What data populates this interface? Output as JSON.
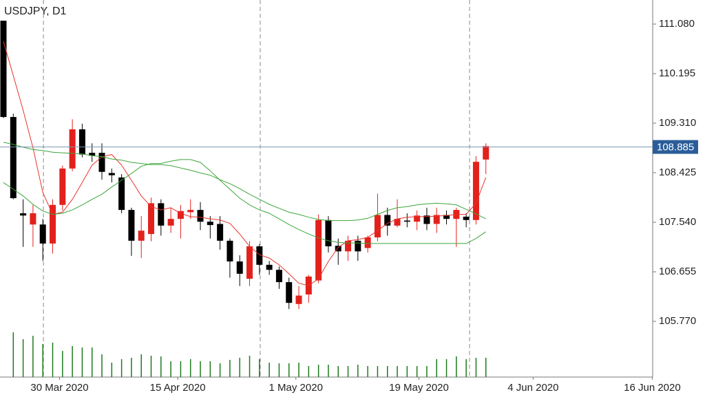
{
  "chart_data": {
    "type": "candlestick",
    "title": "USDJPY, D1",
    "open": [
      111.14,
      109.42,
      107.7,
      107.5,
      107.5,
      107.16,
      107.85,
      108.5,
      109.2,
      108.78,
      108.78,
      108.42,
      108.34,
      107.76,
      107.21,
      107.33,
      107.88,
      107.48,
      107.6,
      107.72,
      107.76,
      107.55,
      107.51,
      107.21,
      106.84,
      106.53,
      107.11,
      106.78,
      106.69,
      106.47,
      106.08,
      106.25,
      106.5,
      107.58,
      107.12,
      107.02,
      107.21,
      107.08,
      107.27,
      107.67,
      107.48,
      107.57,
      107.55,
      107.66,
      107.51,
      107.67,
      107.6,
      107.64,
      107.58,
      108.66
    ],
    "high": [
      111.14,
      109.48,
      107.95,
      107.85,
      107.6,
      107.95,
      108.55,
      109.38,
      109.3,
      108.95,
      108.95,
      108.5,
      108.4,
      107.8,
      107.65,
      107.98,
      107.95,
      107.8,
      107.85,
      107.95,
      107.9,
      107.65,
      107.65,
      107.25,
      106.95,
      107.2,
      107.15,
      106.85,
      106.75,
      106.55,
      106.4,
      106.6,
      107.68,
      107.65,
      107.25,
      107.3,
      107.3,
      107.3,
      108.05,
      107.8,
      107.95,
      107.7,
      107.75,
      107.8,
      107.8,
      107.75,
      107.8,
      107.7,
      108.72,
      108.95
    ],
    "low": [
      109.4,
      107.95,
      107.1,
      107.1,
      106.85,
      106.98,
      107.75,
      108.45,
      108.7,
      108.62,
      108.3,
      108.25,
      107.7,
      106.94,
      106.9,
      107.2,
      107.3,
      107.35,
      107.25,
      107.6,
      107.4,
      107.25,
      107.05,
      106.55,
      106.4,
      106.4,
      106.6,
      106.6,
      106.35,
      105.99,
      105.99,
      106.1,
      106.45,
      107.0,
      106.78,
      106.85,
      106.85,
      107.0,
      107.2,
      107.3,
      107.45,
      107.45,
      107.4,
      107.4,
      107.35,
      107.5,
      107.1,
      107.45,
      107.5,
      108.4
    ],
    "close": [
      109.42,
      107.97,
      107.66,
      107.7,
      107.16,
      107.85,
      108.5,
      109.2,
      108.75,
      108.73,
      108.44,
      108.38,
      107.76,
      107.21,
      107.39,
      107.88,
      107.48,
      107.6,
      107.74,
      107.76,
      107.55,
      107.49,
      107.21,
      106.84,
      106.62,
      107.11,
      106.78,
      106.69,
      106.47,
      106.1,
      106.23,
      106.57,
      107.58,
      107.11,
      107.02,
      107.21,
      107.02,
      107.27,
      107.67,
      107.48,
      107.6,
      107.55,
      107.66,
      107.51,
      107.67,
      107.6,
      107.76,
      107.58,
      108.62,
      108.9
    ],
    "up_color": "#e3211c",
    "down_color": "#000000",
    "lines": [
      {
        "color": "#e8332a",
        "values": [
          110.77,
          110.16,
          109.54,
          108.87,
          108.07,
          107.68,
          107.72,
          107.95,
          108.25,
          108.56,
          108.71,
          108.75,
          108.56,
          108.29,
          108.01,
          107.82,
          107.76,
          107.8,
          107.7,
          107.64,
          107.63,
          107.6,
          107.58,
          107.52,
          107.33,
          107.11,
          106.96,
          106.9,
          106.78,
          106.62,
          106.45,
          106.41,
          106.53,
          106.84,
          107.09,
          107.21,
          107.23,
          107.27,
          107.39,
          107.52,
          107.6,
          107.63,
          107.64,
          107.64,
          107.65,
          107.66,
          107.68,
          107.68,
          107.88,
          108.34
        ]
      },
      {
        "color": "#3aa53a",
        "values": [
          108.25,
          108.13,
          108.01,
          107.86,
          107.74,
          107.68,
          107.7,
          107.76,
          107.85,
          107.95,
          108.04,
          108.17,
          108.29,
          108.41,
          108.54,
          108.59,
          108.59,
          108.63,
          108.66,
          108.66,
          108.61,
          108.46,
          108.29,
          108.13,
          107.97,
          107.85,
          107.76,
          107.7,
          107.6,
          107.5,
          107.41,
          107.33,
          107.26,
          107.21,
          107.18,
          107.17,
          107.17,
          107.16,
          107.16,
          107.16,
          107.16,
          107.16,
          107.16,
          107.16,
          107.16,
          107.16,
          107.16,
          107.16,
          107.25,
          107.37
        ]
      },
      {
        "color": "#3aa53a",
        "values": [
          108.97,
          108.93,
          108.88,
          108.84,
          108.82,
          108.79,
          108.78,
          108.77,
          108.76,
          108.73,
          108.71,
          108.67,
          108.65,
          108.61,
          108.59,
          108.57,
          108.57,
          108.55,
          108.51,
          108.47,
          108.42,
          108.38,
          108.3,
          108.23,
          108.14,
          108.04,
          107.95,
          107.86,
          107.79,
          107.72,
          107.68,
          107.63,
          107.59,
          107.57,
          107.57,
          107.57,
          107.58,
          107.61,
          107.68,
          107.75,
          107.8,
          107.82,
          107.85,
          107.87,
          107.88,
          107.87,
          107.85,
          107.77,
          107.69,
          107.6
        ]
      }
    ],
    "volume": {
      "color": "#1a7a1a",
      "ylim": [
        0,
        548
      ],
      "values": [
        null,
        65,
        55,
        60,
        48,
        50,
        38,
        45,
        43,
        43,
        33,
        21,
        26,
        28,
        33,
        31,
        30,
        23,
        23,
        26,
        23,
        23,
        20,
        25,
        28,
        31,
        26,
        21,
        20,
        20,
        21,
        16,
        18,
        18,
        16,
        16,
        18,
        16,
        16,
        16,
        16,
        16,
        16,
        16,
        26,
        26,
        30,
        26,
        28,
        28
      ]
    },
    "ylim": [
      104.775,
      111.51
    ],
    "yticks": [
      {
        "value": 111.08,
        "label": "111.080"
      },
      110.195,
      {
        "value": 109.31,
        "label": "109.310"
      },
      108.425,
      {
        "value": 107.54,
        "label": "107.540"
      },
      106.655,
      {
        "value": 105.77,
        "label": "105.770"
      }
    ],
    "xlim": [
      -0.35,
      65.94
    ],
    "xticks": [
      {
        "value": 5.7,
        "label": "30 Mar 2020"
      },
      {
        "value": 17.7,
        "label": "15 Apr 2020"
      },
      {
        "value": 29.7,
        "label": "1 May 2020"
      },
      {
        "value": 42.2,
        "label": "19 May 2020"
      },
      {
        "value": 53.8,
        "label": "4 Jun 2020"
      },
      {
        "value": 65.9,
        "label": "16 Jun 2020"
      }
    ],
    "xgrid": [
      4.06,
      26.08,
      47.34
    ],
    "last_price": 108.885,
    "last_price_color": "#2a5d99"
  }
}
